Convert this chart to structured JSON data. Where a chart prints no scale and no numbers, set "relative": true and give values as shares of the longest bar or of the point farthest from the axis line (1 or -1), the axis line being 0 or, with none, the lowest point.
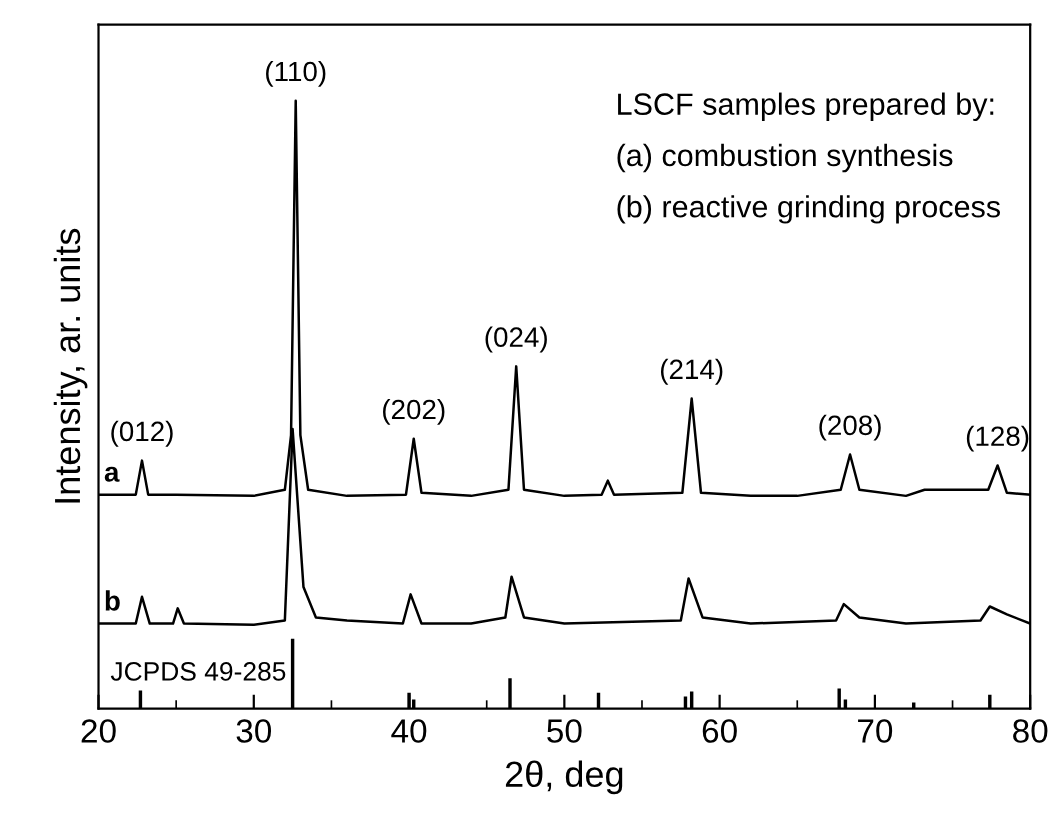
{
  "chart_data": {
    "type": "line",
    "relative": true,
    "xlabel": "2θ, deg",
    "ylabel": "Intensity, ar. units",
    "xlim": [
      20,
      80
    ],
    "xticks": [
      20,
      30,
      40,
      50,
      60,
      70,
      80
    ],
    "grid": false,
    "legend": false,
    "marker": "none",
    "line_style": "solid",
    "series": [
      {
        "name": "a",
        "color": "#000000",
        "x": [
          20,
          22.4,
          22.8,
          23.2,
          25,
          30,
          32.0,
          32.4,
          32.7,
          33.0,
          33.5,
          36,
          39.8,
          40.3,
          40.8,
          44,
          46.4,
          46.9,
          47.4,
          50,
          52.4,
          52.8,
          53.2,
          57.6,
          58.2,
          58.8,
          62,
          65,
          67.8,
          68.4,
          69.0,
          72,
          73.2,
          77.3,
          77.9,
          78.5,
          80
        ],
        "values": [
          0.352,
          0.352,
          0.408,
          0.352,
          0.352,
          0.35,
          0.36,
          0.45,
          1.0,
          0.45,
          0.36,
          0.35,
          0.352,
          0.444,
          0.355,
          0.35,
          0.36,
          0.563,
          0.36,
          0.35,
          0.352,
          0.375,
          0.352,
          0.355,
          0.51,
          0.355,
          0.35,
          0.35,
          0.36,
          0.418,
          0.36,
          0.35,
          0.36,
          0.36,
          0.4,
          0.355,
          0.352
        ]
      },
      {
        "name": "b",
        "color": "#000000",
        "x": [
          20,
          22.4,
          22.8,
          23.3,
          24.8,
          25.1,
          25.5,
          30,
          32.0,
          32.5,
          33.2,
          34,
          36,
          39.6,
          40.1,
          40.8,
          44,
          46.2,
          46.6,
          47.4,
          50,
          57.5,
          58.0,
          58.9,
          62,
          67.5,
          68.0,
          69,
          72,
          76.8,
          77.4,
          78.5,
          80
        ],
        "values": [
          0.14,
          0.14,
          0.184,
          0.14,
          0.14,
          0.165,
          0.14,
          0.138,
          0.145,
          0.46,
          0.2,
          0.15,
          0.145,
          0.14,
          0.188,
          0.14,
          0.14,
          0.15,
          0.217,
          0.15,
          0.14,
          0.145,
          0.214,
          0.15,
          0.14,
          0.145,
          0.172,
          0.15,
          0.14,
          0.145,
          0.168,
          0.155,
          0.14
        ]
      },
      {
        "name": "JCPDS 49-285",
        "type": "bar",
        "color": "#000000",
        "x": [
          22.7,
          32.5,
          40.0,
          40.3,
          46.5,
          52.2,
          57.8,
          58.2,
          67.7,
          68.1,
          72.5,
          77.4
        ],
        "values": [
          0.03,
          0.115,
          0.026,
          0.015,
          0.05,
          0.026,
          0.02,
          0.028,
          0.033,
          0.015,
          0.01,
          0.023
        ]
      }
    ],
    "annotations": [
      "LSCF samples prepared by:",
      "(a) combustion synthesis",
      "(b) reactive grinding process",
      {
        "text": "(012)",
        "x": 22.8,
        "y": 0.408
      },
      {
        "text": "(110)",
        "x": 32.7,
        "y": 1.0
      },
      {
        "text": "(202)",
        "x": 40.3,
        "y": 0.444
      },
      {
        "text": "(024)",
        "x": 46.9,
        "y": 0.563
      },
      {
        "text": "(214)",
        "x": 58.2,
        "y": 0.51
      },
      {
        "text": "(208)",
        "x": 68.4,
        "y": 0.418
      },
      {
        "text": "(128)",
        "x": 77.9,
        "y": 0.4
      }
    ]
  }
}
